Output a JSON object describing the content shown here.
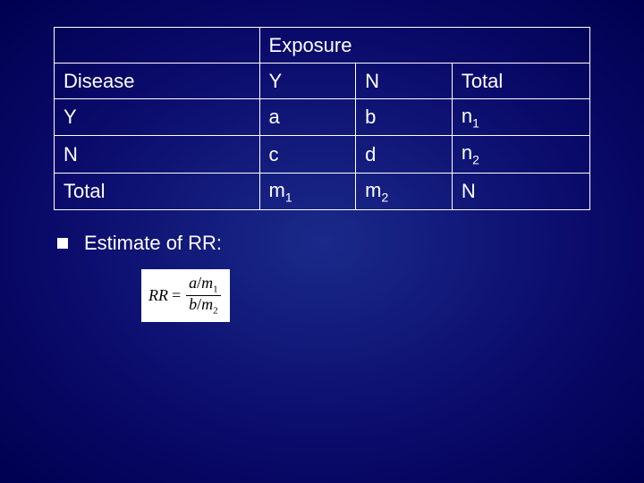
{
  "table": {
    "header_row": {
      "blank": "",
      "exposure": "Exposure"
    },
    "columns": [
      "Disease",
      "Y",
      "N",
      "Total"
    ],
    "rows": [
      [
        "Y",
        "a",
        "b",
        "n",
        "1"
      ],
      [
        "N",
        "c",
        "d",
        "n",
        "2"
      ],
      [
        "Total",
        "m",
        "1",
        "m",
        "2",
        "N"
      ]
    ],
    "border_color": "#ffffff",
    "text_color": "#ffffff",
    "font_size_pt": 22
  },
  "bullet": {
    "text": "Estimate of RR:",
    "marker_color": "#ffffff"
  },
  "formula": {
    "lhs_var": "RR",
    "eq": "=",
    "num_a": "a",
    "num_slash": "/",
    "num_m": "m",
    "num_sub": "1",
    "den_b": "b",
    "den_slash": "/",
    "den_m": "m",
    "den_sub": "2",
    "box_bg": "#ffffff",
    "box_fg": "#000000"
  },
  "background": {
    "gradient_inner": "#1a2a8a",
    "gradient_outer": "#000050"
  }
}
